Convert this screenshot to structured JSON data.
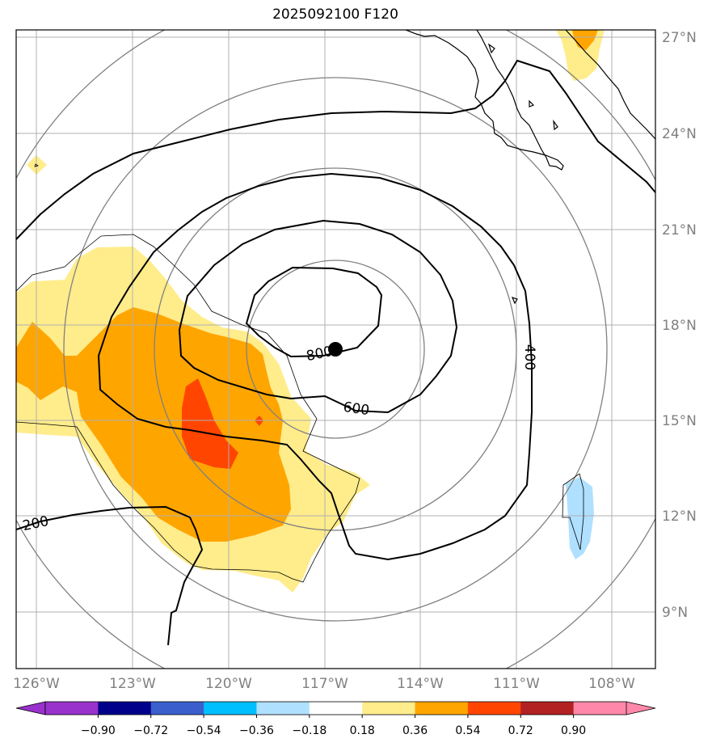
{
  "title": "2025092100 F120",
  "map": {
    "lon_ticks": [
      "126°W",
      "123°W",
      "120°W",
      "117°W",
      "114°W",
      "111°W",
      "108°W"
    ],
    "lat_ticks": [
      "27°N",
      "24°N",
      "21°N",
      "18°N",
      "15°N",
      "12°N",
      "9°N"
    ],
    "contour_labels": [
      "800",
      "600",
      "400",
      "200"
    ],
    "center_marker": "storm-center",
    "colors": {
      "light_yellow": "#ffec8b",
      "orange": "#ffa500",
      "red_orange": "#ff4500",
      "light_blue": "#b0e0ff",
      "contour": "#000000",
      "range_ring": "#808080",
      "grid": "#b0b0b0"
    }
  },
  "colorbar": {
    "labels": [
      "−0.90",
      "−0.72",
      "−0.54",
      "−0.36",
      "−0.18",
      "0.18",
      "0.36",
      "0.54",
      "0.72",
      "0.90"
    ],
    "colors": [
      "#9932cc",
      "#00008b",
      "#3a5fcd",
      "#00bfff",
      "#b0e0ff",
      "#ffffff",
      "#ffec8b",
      "#ffa500",
      "#ff4500",
      "#b22222"
    ],
    "under_color": "#9932cc",
    "over_color": "#ff88aa"
  }
}
